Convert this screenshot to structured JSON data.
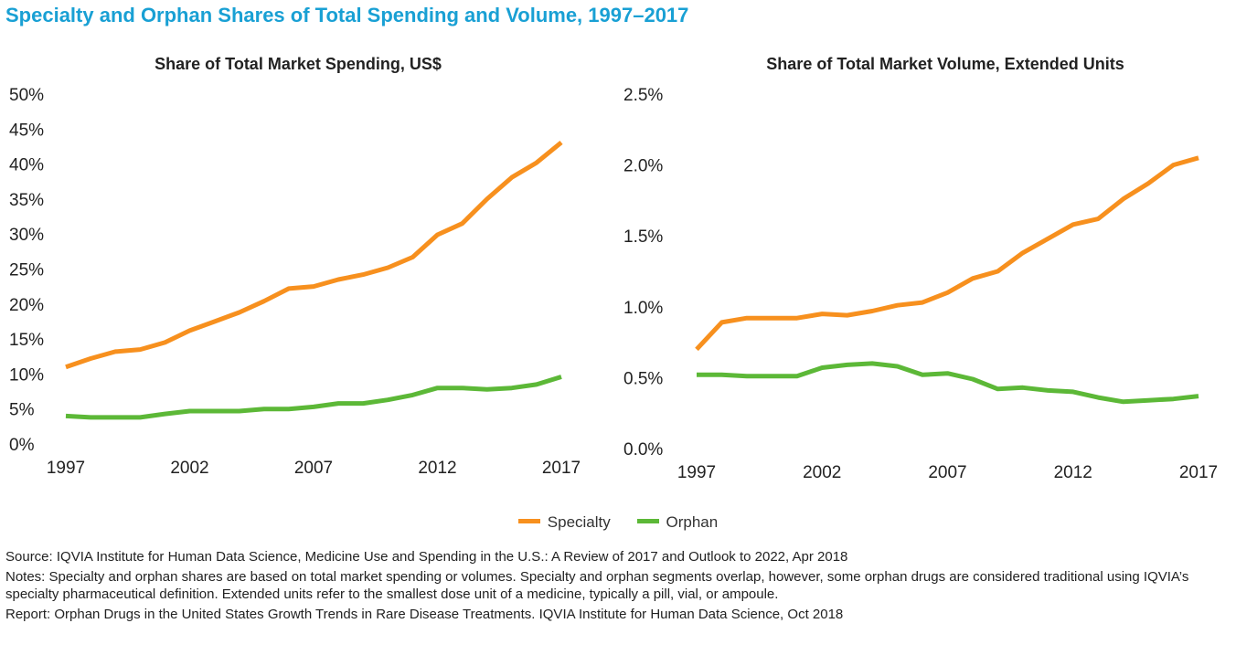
{
  "title": "Specialty and Orphan Shares of Total Spending and Volume, 1997–2017",
  "legend": {
    "specialty": "Specialty",
    "orphan": "Orphan"
  },
  "colors": {
    "title": "#19a0d4",
    "specialty": "#f7901e",
    "orphan": "#5cb837"
  },
  "chart_data": [
    {
      "type": "line",
      "title": "Share of Total Market Spending, US$",
      "xlabel": "",
      "ylabel": "",
      "x": [
        1997,
        1998,
        1999,
        2000,
        2001,
        2002,
        2003,
        2004,
        2005,
        2006,
        2007,
        2008,
        2009,
        2010,
        2011,
        2012,
        2013,
        2014,
        2015,
        2016,
        2017
      ],
      "xticks": [
        "1997",
        "2002",
        "2007",
        "2012",
        "2017"
      ],
      "yticks": [
        "0%",
        "5%",
        "10%",
        "15%",
        "20%",
        "25%",
        "30%",
        "35%",
        "40%",
        "45%",
        "50%"
      ],
      "ylim": [
        0,
        50
      ],
      "grid": false,
      "series": [
        {
          "name": "Specialty",
          "values": [
            11,
            12.2,
            13.2,
            13.5,
            14.5,
            16.2,
            17.5,
            18.8,
            20.4,
            22.2,
            22.5,
            23.5,
            24.2,
            25.2,
            26.7,
            29.9,
            31.5,
            35,
            38.1,
            40.2,
            43.1
          ]
        },
        {
          "name": "Orphan",
          "values": [
            4,
            3.8,
            3.8,
            3.8,
            4.3,
            4.7,
            4.7,
            4.7,
            5,
            5,
            5.3,
            5.8,
            5.8,
            6.3,
            7,
            8,
            8,
            7.8,
            8,
            8.5,
            9.6
          ]
        }
      ]
    },
    {
      "type": "line",
      "title": "Share of Total Market Volume, Extended Units",
      "xlabel": "",
      "ylabel": "",
      "x": [
        1997,
        1998,
        1999,
        2000,
        2001,
        2002,
        2003,
        2004,
        2005,
        2006,
        2007,
        2008,
        2009,
        2010,
        2011,
        2012,
        2013,
        2014,
        2015,
        2016,
        2017
      ],
      "xticks": [
        "1997",
        "2002",
        "2007",
        "2012",
        "2017"
      ],
      "yticks": [
        "0.0%",
        "0.5%",
        "1.0%",
        "1.5%",
        "2.0%",
        "2.5%"
      ],
      "ylim": [
        0,
        2.5
      ],
      "grid": false,
      "series": [
        {
          "name": "Specialty",
          "values": [
            0.7,
            0.89,
            0.92,
            0.92,
            0.92,
            0.95,
            0.94,
            0.97,
            1.01,
            1.03,
            1.1,
            1.2,
            1.25,
            1.38,
            1.48,
            1.58,
            1.62,
            1.76,
            1.87,
            2.0,
            2.05
          ]
        },
        {
          "name": "Orphan",
          "values": [
            0.52,
            0.52,
            0.51,
            0.51,
            0.51,
            0.57,
            0.59,
            0.6,
            0.58,
            0.52,
            0.53,
            0.49,
            0.42,
            0.43,
            0.41,
            0.4,
            0.36,
            0.33,
            0.34,
            0.35,
            0.37
          ]
        }
      ]
    }
  ],
  "footnotes": {
    "source": "Source: IQVIA Institute for Human Data Science, Medicine Use and Spending in the U.S.: A Review of 2017 and Outlook to 2022, Apr 2018",
    "notes": "Notes: Specialty and orphan shares are based on total market spending or volumes. Specialty and orphan segments overlap, however, some orphan drugs are considered traditional using IQVIA’s specialty pharmaceutical definition. Extended units refer to the smallest dose unit of a medicine, typically a pill, vial, or ampoule.",
    "report": "Report: Orphan Drugs in the United States Growth Trends in Rare Disease Treatments. IQVIA Institute for Human Data Science, Oct 2018"
  }
}
